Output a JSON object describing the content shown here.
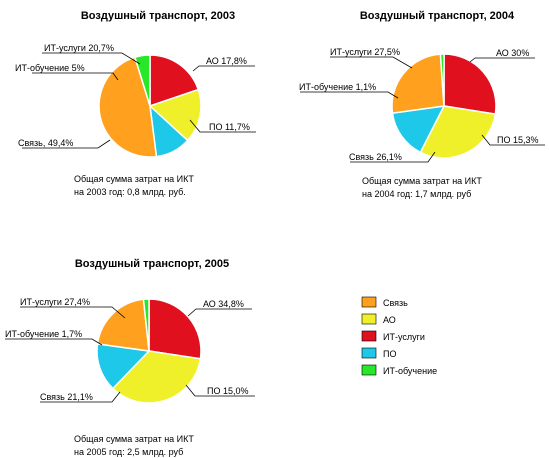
{
  "legend": [
    {
      "name": "Связь",
      "color": "#ffa01e"
    },
    {
      "name": "АО",
      "color": "#f0f02a"
    },
    {
      "name": "ИТ-услуги",
      "color": "#e0101e"
    },
    {
      "name": "ПО",
      "color": "#1ec8e8"
    },
    {
      "name": "ИТ-обучение",
      "color": "#28e628"
    }
  ],
  "chart_data": [
    {
      "type": "pie",
      "title": "Воздушный транспорт, 2003",
      "note": [
        "Общая сумма затрат на ИКТ",
        "на 2003 год: 0,8 млрд. руб."
      ],
      "slices": [
        {
          "name": "ИТ-услуги",
          "value": 20.7,
          "label": "ИТ-услуги 20,7%",
          "color": "#e0101e"
        },
        {
          "name": "АО",
          "value": 17.8,
          "label": "АО 17,8%",
          "color": "#f0f02a"
        },
        {
          "name": "ПО",
          "value": 11.7,
          "label": "ПО 11,7%",
          "color": "#1ec8e8"
        },
        {
          "name": "Связь",
          "value": 49.4,
          "label": "Связь, 49,4%",
          "color": "#ffa01e"
        },
        {
          "name": "ИТ-обучение",
          "value": 5,
          "label": "ИТ-обучение 5%",
          "color": "#28e628"
        }
      ]
    },
    {
      "type": "pie",
      "title": "Воздушный транспорт, 2004",
      "note": [
        "Общая сумма затрат на ИКТ",
        "на 2004 год: 1,7 млрд. руб"
      ],
      "slices": [
        {
          "name": "ИТ-услуги",
          "value": 27.5,
          "label": "ИТ-услуги 27,5%",
          "color": "#e0101e"
        },
        {
          "name": "АО",
          "value": 30,
          "label": "АО 30%",
          "color": "#f0f02a"
        },
        {
          "name": "ПО",
          "value": 15.3,
          "label": "ПО 15,3%",
          "color": "#1ec8e8"
        },
        {
          "name": "Связь",
          "value": 26.1,
          "label": "Связь 26,1%",
          "color": "#ffa01e"
        },
        {
          "name": "ИТ-обучение",
          "value": 1.1,
          "label": "ИТ-обучение 1,1%",
          "color": "#28e628"
        }
      ]
    },
    {
      "type": "pie",
      "title": "Воздушный транспорт, 2005",
      "note": [
        "Общая сумма затрат на ИКТ",
        "на 2005 год: 2,5 млрд. руб"
      ],
      "slices": [
        {
          "name": "ИТ-услуги",
          "value": 27.4,
          "label": "ИТ-услуги 27,4%",
          "color": "#e0101e"
        },
        {
          "name": "АО",
          "value": 34.8,
          "label": "АО 34,8%",
          "color": "#f0f02a"
        },
        {
          "name": "ПО",
          "value": 15.0,
          "label": "ПО 15,0%",
          "color": "#1ec8e8"
        },
        {
          "name": "Связь",
          "value": 21.1,
          "label": "Связь 21,1%",
          "color": "#ffa01e"
        },
        {
          "name": "ИТ-обучение",
          "value": 1.7,
          "label": "ИТ-обучение 1,7%",
          "color": "#28e628"
        }
      ]
    }
  ]
}
